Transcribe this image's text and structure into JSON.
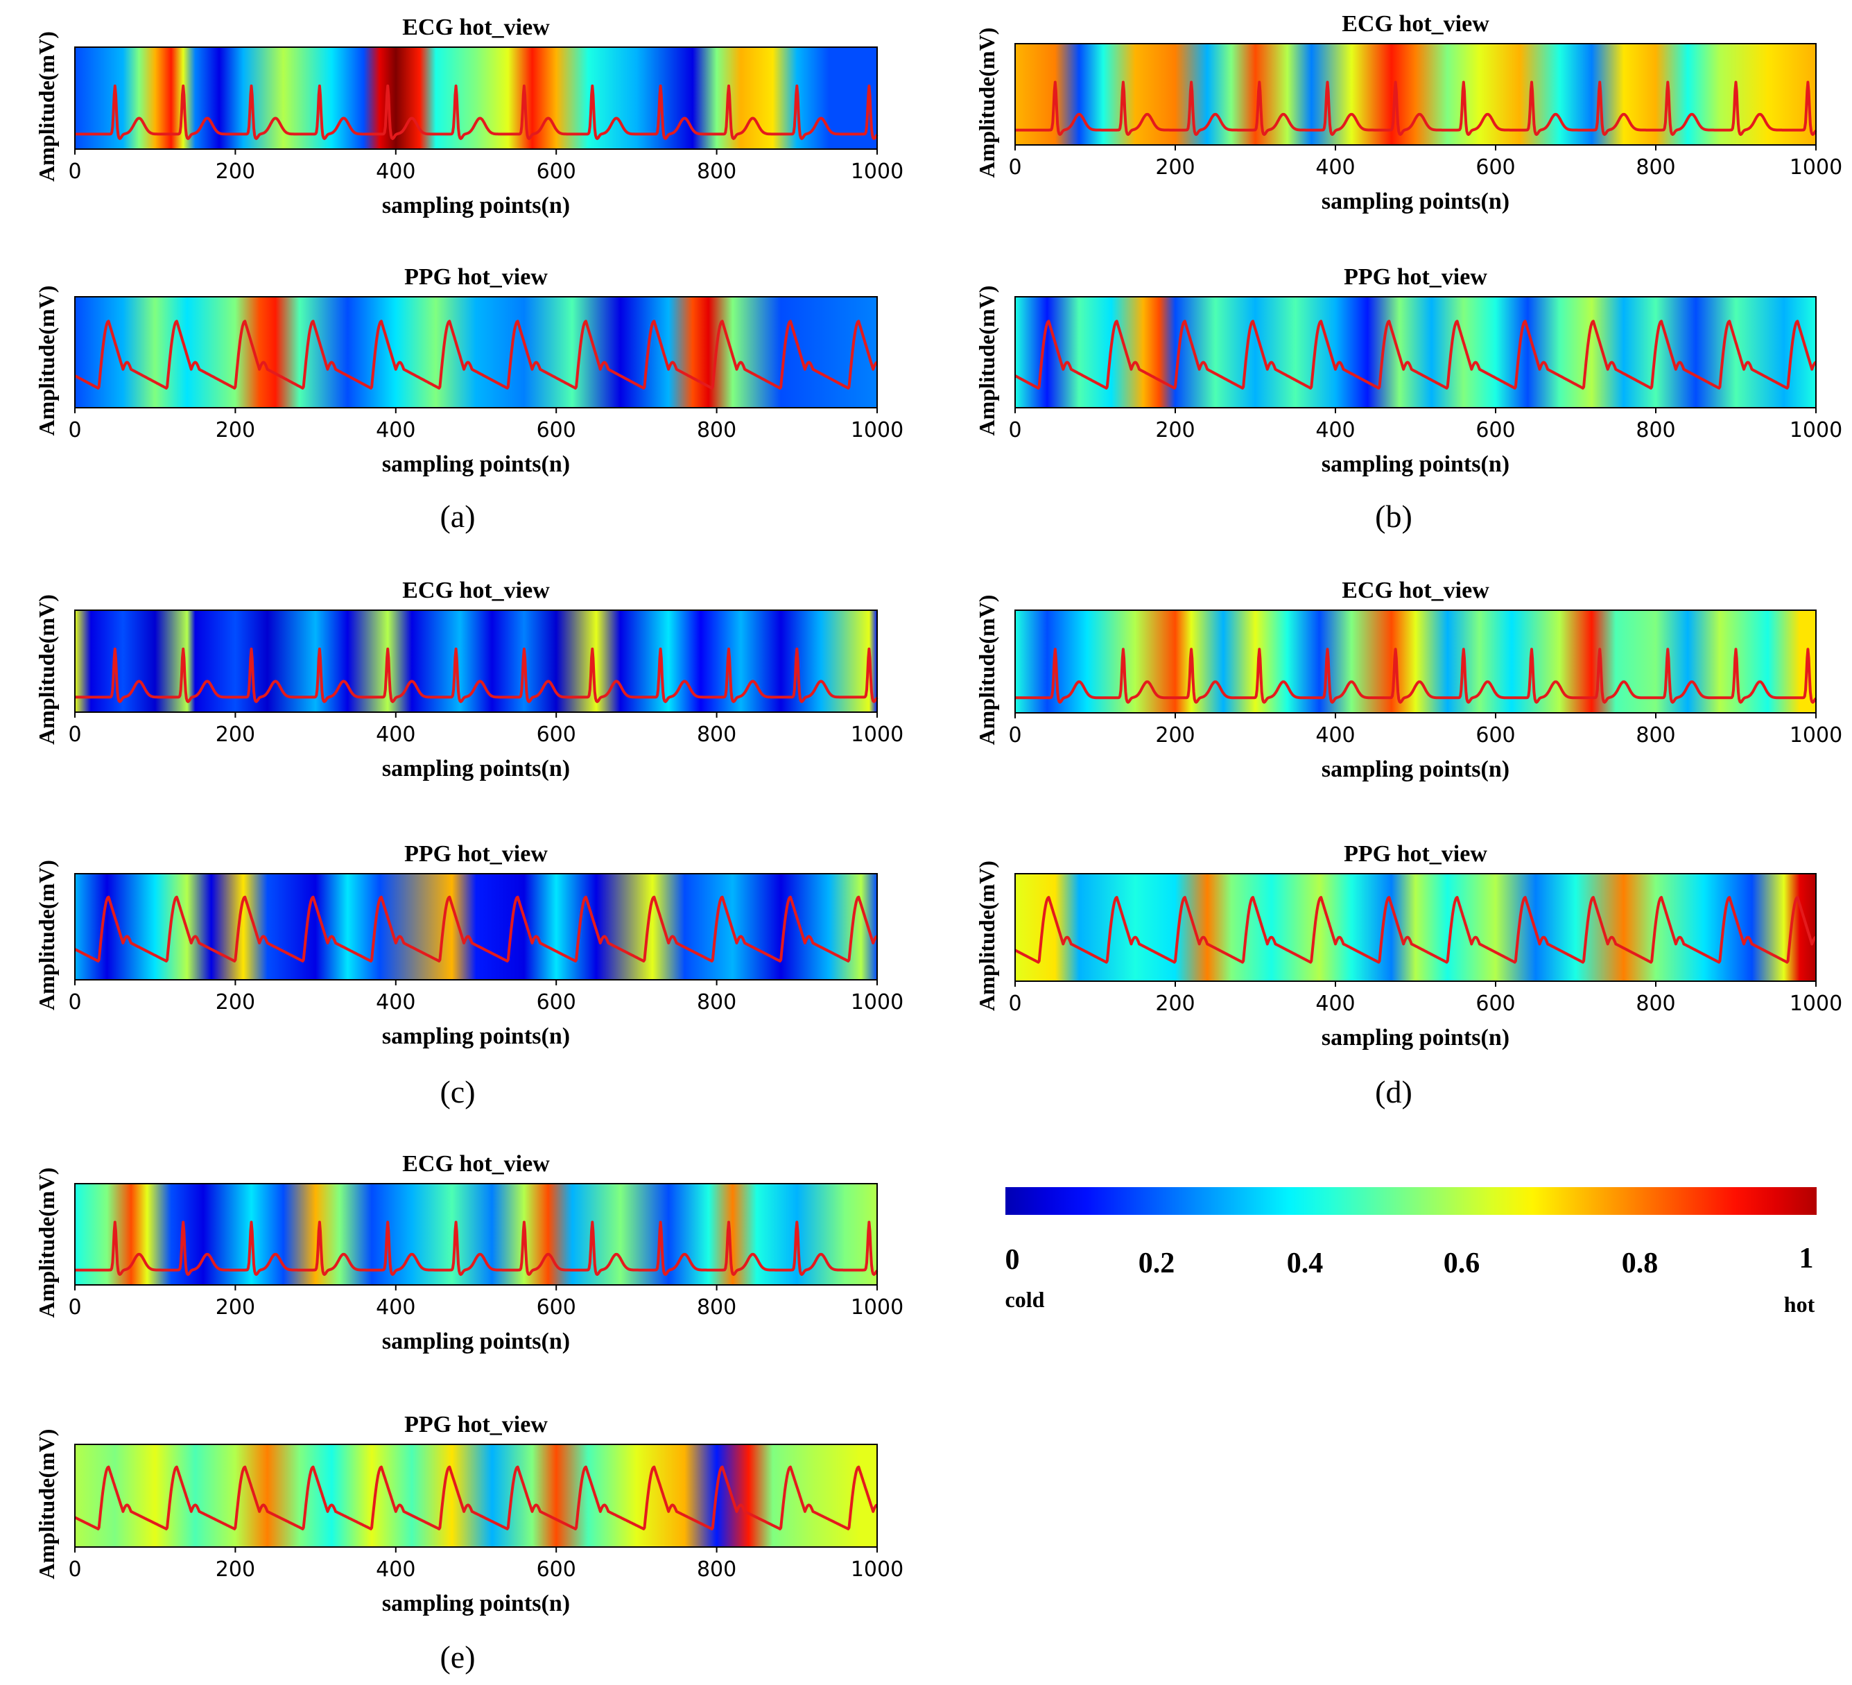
{
  "figure": {
    "colorbar": {
      "ticks": [
        "0",
        "0.2",
        "0.4",
        "0.6",
        "0.8",
        "1"
      ],
      "tick_values": [
        0,
        0.2,
        0.4,
        0.6,
        0.8,
        1
      ],
      "low_label": "cold",
      "high_label": "hot",
      "colormap": "jet"
    }
  },
  "chart_data": [
    {
      "type": "heatmap",
      "panel": "(a)",
      "title": "ECG hot_view",
      "xlabel": "sampling points(n)",
      "ylabel": "Amplitude(mV)",
      "xlim": [
        0,
        1000
      ],
      "xticks": [
        "0",
        "200",
        "400",
        "600",
        "800",
        "1000"
      ],
      "xtick_values": [
        0,
        200,
        400,
        600,
        800,
        1000
      ],
      "signal": "ecg",
      "beat_positions": [
        50,
        135,
        220,
        305,
        390,
        475,
        560,
        645,
        730,
        815,
        900,
        990
      ],
      "heat": [
        [
          0,
          0.2
        ],
        [
          60,
          0.3
        ],
        [
          80,
          0.5
        ],
        [
          100,
          0.7
        ],
        [
          120,
          0.85
        ],
        [
          135,
          0.6
        ],
        [
          150,
          0.25
        ],
        [
          180,
          0.1
        ],
        [
          210,
          0.3
        ],
        [
          260,
          0.55
        ],
        [
          320,
          0.35
        ],
        [
          360,
          0.2
        ],
        [
          380,
          0.9
        ],
        [
          400,
          1.0
        ],
        [
          430,
          0.85
        ],
        [
          450,
          0.4
        ],
        [
          500,
          0.5
        ],
        [
          540,
          0.6
        ],
        [
          570,
          0.85
        ],
        [
          600,
          0.7
        ],
        [
          640,
          0.4
        ],
        [
          700,
          0.3
        ],
        [
          770,
          0.1
        ],
        [
          800,
          0.5
        ],
        [
          830,
          0.7
        ],
        [
          870,
          0.65
        ],
        [
          900,
          0.3
        ],
        [
          940,
          0.2
        ],
        [
          1000,
          0.2
        ]
      ]
    },
    {
      "type": "heatmap",
      "panel": "(a)",
      "title": "PPG hot_view",
      "xlabel": "sampling points(n)",
      "ylabel": "Amplitude(mV)",
      "xlim": [
        0,
        1000
      ],
      "xticks": [
        "0",
        "200",
        "400",
        "600",
        "800",
        "1000"
      ],
      "xtick_values": [
        0,
        200,
        400,
        600,
        800,
        1000
      ],
      "signal": "ppg",
      "beat_positions": [
        30,
        115,
        200,
        285,
        370,
        455,
        540,
        625,
        710,
        795,
        880,
        965
      ],
      "heat": [
        [
          0,
          0.2
        ],
        [
          60,
          0.3
        ],
        [
          100,
          0.5
        ],
        [
          140,
          0.35
        ],
        [
          200,
          0.5
        ],
        [
          230,
          0.8
        ],
        [
          250,
          0.85
        ],
        [
          280,
          0.45
        ],
        [
          340,
          0.2
        ],
        [
          400,
          0.35
        ],
        [
          450,
          0.5
        ],
        [
          500,
          0.3
        ],
        [
          560,
          0.25
        ],
        [
          620,
          0.45
        ],
        [
          680,
          0.1
        ],
        [
          740,
          0.3
        ],
        [
          770,
          0.8
        ],
        [
          790,
          0.9
        ],
        [
          820,
          0.5
        ],
        [
          880,
          0.2
        ],
        [
          1000,
          0.25
        ]
      ]
    },
    {
      "type": "heatmap",
      "panel": "(b)",
      "title": "ECG hot_view",
      "xlabel": "sampling points(n)",
      "ylabel": "Amplitude(mV)",
      "xlim": [
        0,
        1000
      ],
      "xticks": [
        "0",
        "200",
        "400",
        "600",
        "800",
        "1000"
      ],
      "xtick_values": [
        0,
        200,
        400,
        600,
        800,
        1000
      ],
      "signal": "ecg",
      "beat_positions": [
        50,
        135,
        220,
        305,
        390,
        475,
        560,
        645,
        730,
        815,
        900,
        990
      ],
      "heat": [
        [
          0,
          0.7
        ],
        [
          50,
          0.75
        ],
        [
          80,
          0.2
        ],
        [
          110,
          0.4
        ],
        [
          150,
          0.7
        ],
        [
          200,
          0.75
        ],
        [
          240,
          0.3
        ],
        [
          270,
          0.5
        ],
        [
          300,
          0.8
        ],
        [
          340,
          0.55
        ],
        [
          370,
          0.25
        ],
        [
          420,
          0.6
        ],
        [
          470,
          0.85
        ],
        [
          500,
          0.75
        ],
        [
          540,
          0.5
        ],
        [
          580,
          0.6
        ],
        [
          630,
          0.7
        ],
        [
          680,
          0.4
        ],
        [
          720,
          0.25
        ],
        [
          760,
          0.65
        ],
        [
          800,
          0.7
        ],
        [
          840,
          0.4
        ],
        [
          880,
          0.55
        ],
        [
          940,
          0.65
        ],
        [
          1000,
          0.7
        ]
      ]
    },
    {
      "type": "heatmap",
      "panel": "(b)",
      "title": "PPG hot_view",
      "xlabel": "sampling points(n)",
      "ylabel": "Amplitude(mV)",
      "xlim": [
        0,
        1000
      ],
      "xticks": [
        "0",
        "200",
        "400",
        "600",
        "800",
        "1000"
      ],
      "xtick_values": [
        0,
        200,
        400,
        600,
        800,
        1000
      ],
      "signal": "ppg",
      "beat_positions": [
        30,
        115,
        200,
        285,
        370,
        455,
        540,
        625,
        710,
        795,
        880,
        965
      ],
      "heat": [
        [
          0,
          0.4
        ],
        [
          40,
          0.15
        ],
        [
          80,
          0.45
        ],
        [
          120,
          0.35
        ],
        [
          160,
          0.7
        ],
        [
          180,
          0.8
        ],
        [
          200,
          0.2
        ],
        [
          250,
          0.45
        ],
        [
          300,
          0.3
        ],
        [
          350,
          0.45
        ],
        [
          400,
          0.3
        ],
        [
          440,
          0.15
        ],
        [
          480,
          0.5
        ],
        [
          520,
          0.3
        ],
        [
          560,
          0.5
        ],
        [
          600,
          0.4
        ],
        [
          640,
          0.2
        ],
        [
          680,
          0.45
        ],
        [
          720,
          0.55
        ],
        [
          760,
          0.3
        ],
        [
          800,
          0.45
        ],
        [
          850,
          0.2
        ],
        [
          900,
          0.45
        ],
        [
          960,
          0.3
        ],
        [
          1000,
          0.4
        ]
      ]
    },
    {
      "type": "heatmap",
      "panel": "(c)",
      "title": "ECG hot_view",
      "xlabel": "sampling points(n)",
      "ylabel": "Amplitude(mV)",
      "xlim": [
        0,
        1000
      ],
      "xticks": [
        "0",
        "200",
        "400",
        "600",
        "800",
        "1000"
      ],
      "xtick_values": [
        0,
        200,
        400,
        600,
        800,
        1000
      ],
      "signal": "ecg",
      "beat_positions": [
        50,
        135,
        220,
        305,
        390,
        475,
        560,
        645,
        730,
        815,
        900,
        990
      ],
      "heat": [
        [
          0,
          0.6
        ],
        [
          20,
          0.1
        ],
        [
          60,
          0.2
        ],
        [
          100,
          0.08
        ],
        [
          140,
          0.55
        ],
        [
          150,
          0.1
        ],
        [
          200,
          0.2
        ],
        [
          240,
          0.08
        ],
        [
          300,
          0.3
        ],
        [
          340,
          0.1
        ],
        [
          390,
          0.55
        ],
        [
          420,
          0.1
        ],
        [
          480,
          0.3
        ],
        [
          520,
          0.1
        ],
        [
          560,
          0.25
        ],
        [
          600,
          0.08
        ],
        [
          650,
          0.6
        ],
        [
          680,
          0.1
        ],
        [
          740,
          0.35
        ],
        [
          780,
          0.12
        ],
        [
          830,
          0.3
        ],
        [
          880,
          0.1
        ],
        [
          930,
          0.3
        ],
        [
          990,
          0.6
        ],
        [
          1000,
          0.15
        ]
      ]
    },
    {
      "type": "heatmap",
      "panel": "(c)",
      "title": "PPG hot_view",
      "xlabel": "sampling points(n)",
      "ylabel": "Amplitude(mV)",
      "xlim": [
        0,
        1000
      ],
      "xticks": [
        "0",
        "200",
        "400",
        "600",
        "800",
        "1000"
      ],
      "xtick_values": [
        0,
        200,
        400,
        600,
        800,
        1000
      ],
      "signal": "ppg",
      "beat_positions": [
        30,
        115,
        200,
        285,
        370,
        455,
        540,
        625,
        710,
        795,
        880,
        965
      ],
      "heat": [
        [
          0,
          0.3
        ],
        [
          40,
          0.1
        ],
        [
          100,
          0.35
        ],
        [
          140,
          0.55
        ],
        [
          170,
          0.1
        ],
        [
          210,
          0.65
        ],
        [
          240,
          0.2
        ],
        [
          300,
          0.1
        ],
        [
          340,
          0.35
        ],
        [
          380,
          0.2
        ],
        [
          470,
          0.7
        ],
        [
          500,
          0.15
        ],
        [
          560,
          0.1
        ],
        [
          600,
          0.35
        ],
        [
          650,
          0.1
        ],
        [
          720,
          0.6
        ],
        [
          760,
          0.2
        ],
        [
          820,
          0.3
        ],
        [
          880,
          0.1
        ],
        [
          940,
          0.3
        ],
        [
          980,
          0.55
        ],
        [
          1000,
          0.2
        ]
      ]
    },
    {
      "type": "heatmap",
      "panel": "(d)",
      "title": "ECG hot_view",
      "xlabel": "sampling points(n)",
      "ylabel": "Amplitude(mV)",
      "xlim": [
        0,
        1000
      ],
      "xticks": [
        "0",
        "200",
        "400",
        "600",
        "800",
        "1000"
      ],
      "xtick_values": [
        0,
        200,
        400,
        600,
        800,
        1000
      ],
      "signal": "ecg",
      "beat_positions": [
        50,
        135,
        220,
        305,
        390,
        475,
        560,
        645,
        730,
        815,
        900,
        990
      ],
      "heat": [
        [
          0,
          0.4
        ],
        [
          40,
          0.2
        ],
        [
          90,
          0.35
        ],
        [
          150,
          0.55
        ],
        [
          200,
          0.8
        ],
        [
          220,
          0.6
        ],
        [
          260,
          0.3
        ],
        [
          300,
          0.6
        ],
        [
          340,
          0.4
        ],
        [
          380,
          0.2
        ],
        [
          420,
          0.5
        ],
        [
          470,
          0.8
        ],
        [
          500,
          0.6
        ],
        [
          540,
          0.3
        ],
        [
          580,
          0.5
        ],
        [
          620,
          0.35
        ],
        [
          680,
          0.55
        ],
        [
          720,
          0.85
        ],
        [
          750,
          0.45
        ],
        [
          800,
          0.5
        ],
        [
          840,
          0.3
        ],
        [
          880,
          0.55
        ],
        [
          940,
          0.4
        ],
        [
          980,
          0.65
        ],
        [
          1000,
          0.65
        ]
      ]
    },
    {
      "type": "heatmap",
      "panel": "(d)",
      "title": "PPG hot_view",
      "xlabel": "sampling points(n)",
      "ylabel": "Amplitude(mV)",
      "xlim": [
        0,
        1000
      ],
      "xticks": [
        "0",
        "200",
        "400",
        "600",
        "800",
        "1000"
      ],
      "xtick_values": [
        0,
        200,
        400,
        600,
        800,
        1000
      ],
      "signal": "ppg",
      "beat_positions": [
        30,
        115,
        200,
        285,
        370,
        455,
        540,
        625,
        710,
        795,
        880,
        965
      ],
      "heat": [
        [
          0,
          0.6
        ],
        [
          50,
          0.65
        ],
        [
          80,
          0.3
        ],
        [
          150,
          0.4
        ],
        [
          200,
          0.35
        ],
        [
          240,
          0.75
        ],
        [
          270,
          0.5
        ],
        [
          320,
          0.4
        ],
        [
          380,
          0.55
        ],
        [
          420,
          0.4
        ],
        [
          470,
          0.25
        ],
        [
          500,
          0.55
        ],
        [
          540,
          0.4
        ],
        [
          600,
          0.55
        ],
        [
          650,
          0.25
        ],
        [
          700,
          0.4
        ],
        [
          760,
          0.75
        ],
        [
          800,
          0.5
        ],
        [
          860,
          0.35
        ],
        [
          920,
          0.2
        ],
        [
          960,
          0.6
        ],
        [
          980,
          0.9
        ],
        [
          1000,
          0.95
        ]
      ]
    },
    {
      "type": "heatmap",
      "panel": "(e)",
      "title": "ECG hot_view",
      "xlabel": "sampling points(n)",
      "ylabel": "Amplitude(mV)",
      "xlim": [
        0,
        1000
      ],
      "xticks": [
        "0",
        "200",
        "400",
        "600",
        "800",
        "1000"
      ],
      "xtick_values": [
        0,
        200,
        400,
        600,
        800,
        1000
      ],
      "signal": "ecg",
      "beat_positions": [
        50,
        135,
        220,
        305,
        390,
        475,
        560,
        645,
        730,
        815,
        900,
        990
      ],
      "heat": [
        [
          0,
          0.4
        ],
        [
          40,
          0.5
        ],
        [
          70,
          0.8
        ],
        [
          90,
          0.6
        ],
        [
          120,
          0.2
        ],
        [
          160,
          0.1
        ],
        [
          220,
          0.35
        ],
        [
          260,
          0.2
        ],
        [
          300,
          0.7
        ],
        [
          330,
          0.5
        ],
        [
          370,
          0.2
        ],
        [
          420,
          0.3
        ],
        [
          470,
          0.45
        ],
        [
          520,
          0.25
        ],
        [
          560,
          0.55
        ],
        [
          590,
          0.8
        ],
        [
          620,
          0.3
        ],
        [
          680,
          0.5
        ],
        [
          740,
          0.2
        ],
        [
          790,
          0.4
        ],
        [
          820,
          0.75
        ],
        [
          850,
          0.4
        ],
        [
          900,
          0.3
        ],
        [
          960,
          0.5
        ],
        [
          1000,
          0.55
        ]
      ]
    },
    {
      "type": "heatmap",
      "panel": "(e)",
      "title": "PPG hot_view",
      "xlabel": "sampling points(n)",
      "ylabel": "Amplitude(mV)",
      "xlim": [
        0,
        1000
      ],
      "xticks": [
        "0",
        "200",
        "400",
        "600",
        "800",
        "1000"
      ],
      "xtick_values": [
        0,
        200,
        400,
        600,
        800,
        1000
      ],
      "signal": "ppg",
      "beat_positions": [
        30,
        115,
        200,
        285,
        370,
        455,
        540,
        625,
        710,
        795,
        880,
        965
      ],
      "heat": [
        [
          0,
          0.55
        ],
        [
          50,
          0.5
        ],
        [
          100,
          0.6
        ],
        [
          150,
          0.45
        ],
        [
          200,
          0.55
        ],
        [
          240,
          0.75
        ],
        [
          280,
          0.5
        ],
        [
          320,
          0.4
        ],
        [
          370,
          0.6
        ],
        [
          420,
          0.45
        ],
        [
          470,
          0.65
        ],
        [
          520,
          0.3
        ],
        [
          570,
          0.5
        ],
        [
          600,
          0.8
        ],
        [
          640,
          0.45
        ],
        [
          700,
          0.6
        ],
        [
          760,
          0.7
        ],
        [
          800,
          0.15
        ],
        [
          840,
          0.85
        ],
        [
          870,
          0.5
        ],
        [
          920,
          0.55
        ],
        [
          980,
          0.6
        ],
        [
          1000,
          0.6
        ]
      ]
    }
  ],
  "panel_labels": [
    "(a)",
    "(b)",
    "(c)",
    "(d)",
    "(e)"
  ]
}
